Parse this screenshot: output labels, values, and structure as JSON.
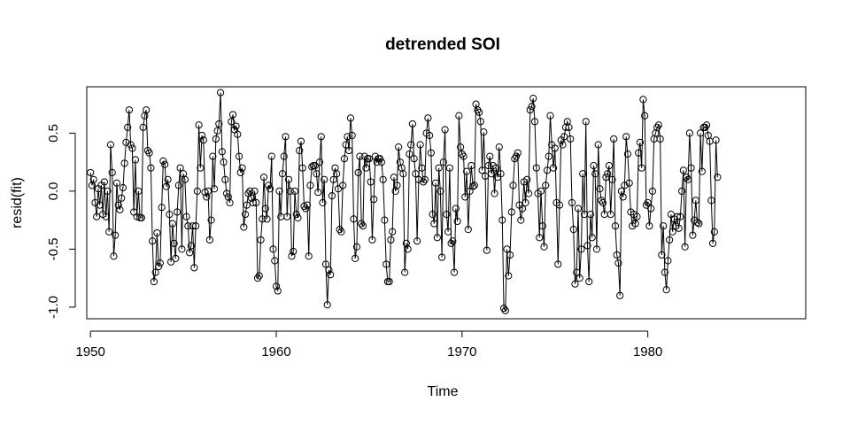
{
  "chart_data": {
    "type": "line",
    "title": "detrended SOI",
    "xlabel": "Time",
    "ylabel": "resid(fit)",
    "xlim": [
      1949.8,
      1988.5
    ],
    "ylim": [
      -1.1,
      0.9
    ],
    "x_ticks": [
      1950,
      1960,
      1970,
      1980
    ],
    "y_ticks": [
      -1.0,
      -0.5,
      0.0,
      0.5
    ],
    "x_tick_labels": [
      "1950",
      "1960",
      "1970",
      "1980"
    ],
    "y_tick_labels": [
      "-1.0",
      "-0.5",
      "0.0",
      "0.5"
    ],
    "marker": "open-circle",
    "grid": false,
    "x_start": 1950.0,
    "x_step": 0.0833333,
    "series": [
      {
        "values": [
          0.16,
          0.05,
          0.1,
          -0.1,
          -0.22,
          0.02,
          -0.12,
          0.05,
          -0.2,
          0.08,
          -0.22,
          0.0,
          -0.35,
          0.4,
          0.16,
          -0.56,
          -0.38,
          0.07,
          -0.12,
          -0.16,
          -0.06,
          0.03,
          0.24,
          0.42,
          0.55,
          0.7,
          0.4,
          0.37,
          -0.18,
          0.27,
          -0.22,
          0.0,
          -0.23,
          -0.23,
          0.55,
          0.65,
          0.7,
          0.35,
          0.33,
          0.2,
          -0.43,
          -0.78,
          -0.7,
          -0.36,
          -0.65,
          -0.62,
          -0.14,
          0.26,
          0.23,
          0.04,
          0.1,
          -0.2,
          -0.61,
          -0.28,
          -0.45,
          -0.58,
          -0.18,
          0.05,
          0.2,
          -0.5,
          0.15,
          0.1,
          -0.22,
          -0.3,
          -0.53,
          -0.47,
          -0.3,
          -0.66,
          -0.3,
          0.0,
          0.57,
          0.2,
          0.48,
          0.44,
          -0.01,
          -0.05,
          0.0,
          -0.42,
          -0.25,
          0.3,
          0.02,
          0.45,
          0.52,
          0.58,
          0.85,
          0.34,
          0.25,
          0.1,
          -0.02,
          -0.05,
          -0.1,
          0.6,
          0.66,
          0.53,
          0.56,
          0.49,
          0.3,
          0.16,
          0.2,
          -0.31,
          -0.2,
          -0.12,
          -0.02,
          0.0,
          -0.06,
          -0.1,
          0.0,
          -0.1,
          -0.75,
          -0.73,
          -0.42,
          -0.24,
          0.12,
          -0.15,
          -0.24,
          0.05,
          0.02,
          0.3,
          -0.5,
          -0.6,
          -0.82,
          -0.86,
          0.0,
          -0.22,
          0.15,
          0.3,
          0.47,
          -0.22,
          0.1,
          0.0,
          -0.56,
          -0.52,
          0.0,
          -0.2,
          -0.23,
          0.35,
          0.43,
          0.2,
          -0.13,
          -0.15,
          -0.12,
          -0.56,
          0.05,
          0.21,
          0.22,
          0.22,
          0.15,
          -0.01,
          0.25,
          0.47,
          -0.1,
          0.1,
          -0.63,
          -0.98,
          -0.68,
          -0.72,
          -0.04,
          0.1,
          0.2,
          0.15,
          0.02,
          -0.33,
          -0.35,
          0.05,
          0.28,
          0.4,
          0.47,
          0.35,
          0.63,
          0.48,
          -0.24,
          -0.58,
          -0.48,
          0.16,
          0.3,
          -0.28,
          -0.3,
          0.3,
          0.2,
          0.28,
          0.28,
          0.08,
          -0.42,
          -0.07,
          0.3,
          0.25,
          0.28,
          0.28,
          0.25,
          0.1,
          -0.25,
          -0.63,
          -0.78,
          -0.78,
          -0.42,
          -0.35,
          0.12,
          0.0,
          0.05,
          0.38,
          0.25,
          0.2,
          0.15,
          -0.7,
          -0.45,
          -0.5,
          0.32,
          0.4,
          0.58,
          0.28,
          0.15,
          -0.43,
          0.1,
          0.4,
          0.2,
          0.08,
          0.1,
          0.5,
          0.63,
          0.48,
          0.33,
          -0.2,
          -0.28,
          0.07,
          -0.4,
          0.2,
          0.0,
          -0.57,
          0.25,
          0.53,
          -0.2,
          -0.35,
          0.2,
          -0.45,
          -0.43,
          -0.7,
          -0.15,
          -0.26,
          0.65,
          0.38,
          0.32,
          0.3,
          -0.05,
          0.17,
          -0.33,
          0.0,
          0.22,
          0.04,
          0.05,
          0.75,
          0.7,
          0.68,
          0.6,
          0.18,
          0.51,
          0.13,
          -0.51,
          0.22,
          0.3,
          0.15,
          0.22,
          -0.02,
          0.2,
          0.12,
          0.38,
          0.15,
          -0.25,
          -1.01,
          -1.03,
          -0.5,
          -0.73,
          -0.55,
          -0.18,
          0.05,
          0.28,
          0.3,
          0.33,
          -0.12,
          -0.25,
          -0.15,
          0.08,
          -0.1,
          0.1,
          -0.02,
          0.7,
          0.73,
          0.8,
          0.6,
          0.2,
          -0.02,
          -0.4,
          0.0,
          -0.3,
          -0.48,
          0.05,
          0.18,
          0.3,
          0.65,
          0.4,
          0.2,
          0.37,
          -0.1,
          -0.63,
          -0.12,
          0.44,
          0.4,
          0.47,
          0.55,
          0.6,
          0.55,
          0.45,
          -0.1,
          -0.33,
          -0.8,
          -0.7,
          -0.15,
          -0.75,
          -0.5,
          0.15,
          -0.2,
          0.6,
          -0.47,
          -0.78,
          -0.2,
          -0.4,
          0.22,
          0.15,
          -0.5,
          0.4,
          0.02,
          -0.08,
          -0.1,
          -0.2,
          0.12,
          0.15,
          0.22,
          -0.2,
          0.1,
          0.45,
          -0.3,
          -0.55,
          -0.62,
          -0.9,
          0.0,
          -0.05,
          0.05,
          0.47,
          0.32,
          0.07,
          -0.18,
          -0.3,
          -0.2,
          -0.28,
          -0.22,
          0.33,
          0.42,
          0.2,
          0.79,
          0.65,
          -0.12,
          -0.1,
          -0.3,
          -0.15,
          0.0,
          0.45,
          0.5,
          0.55,
          0.57,
          0.45,
          -0.55,
          -0.3,
          -0.7,
          -0.85,
          -0.6,
          -0.42,
          -0.2,
          -0.35,
          -0.24,
          -0.3,
          -0.22,
          -0.32,
          -0.22,
          0.0,
          0.18,
          -0.48,
          0.12,
          0.1,
          0.5,
          0.2,
          -0.38,
          -0.25,
          -0.08,
          -0.27,
          -0.28,
          0.5,
          0.17,
          0.55,
          0.55,
          0.57,
          0.48,
          0.43,
          -0.08,
          -0.45,
          -0.35,
          0.44,
          0.12
        ]
      }
    ]
  }
}
